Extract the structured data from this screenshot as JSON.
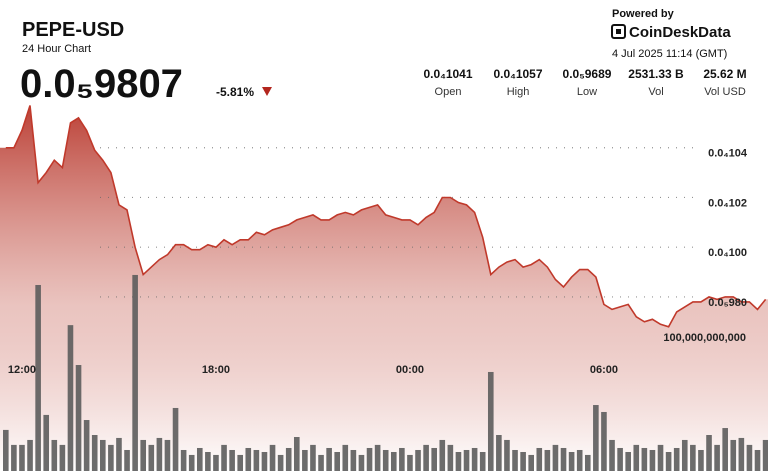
{
  "chart_data": {
    "type": "line",
    "title": "PEPE-USD",
    "subtitle": "24 Hour Chart",
    "price": "0.0₅9807",
    "change": "-5.81%",
    "powered_by": "Powered by",
    "brand": "CoinDeskData",
    "timestamp": "4 Jul 2025 11:14 (GMT)",
    "stats": [
      {
        "value": "0.0₄1041",
        "label": "Open"
      },
      {
        "value": "0.0₄1057",
        "label": "High"
      },
      {
        "value": "0.0₅9689",
        "label": "Low"
      },
      {
        "value": "2531.33 B",
        "label": "Vol"
      },
      {
        "value": "25.62 M",
        "label": "Vol USD"
      }
    ],
    "categories": [
      null,
      null,
      "12:00",
      null,
      null,
      null,
      null,
      null,
      null,
      null,
      null,
      null,
      null,
      null,
      null,
      null,
      null,
      null,
      null,
      null,
      null,
      null,
      null,
      null,
      null,
      null,
      "18:00",
      null,
      null,
      null,
      null,
      null,
      null,
      null,
      null,
      null,
      null,
      null,
      null,
      null,
      null,
      null,
      null,
      null,
      null,
      null,
      null,
      null,
      null,
      null,
      "00:00",
      null,
      null,
      null,
      null,
      null,
      null,
      null,
      null,
      null,
      null,
      null,
      null,
      null,
      null,
      null,
      null,
      null,
      null,
      null,
      null,
      null,
      null,
      null,
      "06:00",
      null,
      null,
      null,
      null,
      null,
      null,
      null,
      null,
      null,
      null,
      null,
      null,
      null,
      null,
      null,
      null,
      null,
      null,
      null,
      null
    ],
    "series": [
      {
        "color": "#c0392b",
        "values": [
          1.042e-05,
          1.042e-05,
          1.049e-05,
          1.059e-05,
          1.028e-05,
          1.032e-05,
          1.037e-05,
          1.034e-05,
          1.052e-05,
          1.054e-05,
          1.049e-05,
          1.041e-05,
          1.037e-05,
          1.032e-05,
          1.019e-05,
          1.017e-05,
          1.002e-05,
          9.91e-06,
          9.94e-06,
          9.97e-06,
          9.99e-06,
          1.003e-05,
          1.003e-05,
          1.001e-05,
          1.001e-05,
          1.003e-05,
          1.002e-05,
          1.005e-05,
          1.003e-05,
          1.005e-05,
          1.005e-05,
          1.008e-05,
          1.007e-05,
          1.009e-05,
          1.01e-05,
          1.011e-05,
          1.013e-05,
          1.014e-05,
          1.015e-05,
          1.013e-05,
          1.013e-05,
          1.015e-05,
          1.016e-05,
          1.015e-05,
          1.017e-05,
          1.018e-05,
          1.019e-05,
          1.015e-05,
          1.014e-05,
          1.013e-05,
          1.013e-05,
          1.011e-05,
          1.014e-05,
          1.016e-05,
          1.022e-05,
          1.022e-05,
          1.02e-05,
          1.019e-05,
          1.016e-05,
          1.006e-05,
          9.91e-06,
          9.94e-06,
          9.96e-06,
          9.97e-06,
          9.94e-06,
          9.95e-06,
          9.97e-06,
          9.94e-06,
          9.89e-06,
          9.86e-06,
          9.9e-06,
          9.93e-06,
          9.93e-06,
          9.9e-06,
          9.79e-06,
          9.77e-06,
          9.78e-06,
          9.79e-06,
          9.74e-06,
          9.72e-06,
          9.73e-06,
          9.71e-06,
          9.7e-06,
          9.76e-06,
          9.78e-06,
          9.8e-06,
          9.8e-06,
          9.82e-06,
          9.81e-06,
          9.82e-06,
          9.82e-06,
          9.8e-06,
          9.8e-06,
          9.77e-06,
          9.81e-06
        ]
      },
      {
        "color": "#5c5c5c",
        "axis": "y2",
        "values": [
          30700000000.0,
          19500000000.0,
          19500000000.0,
          23200000000.0,
          139000000000.0,
          41900000000.0,
          23200000000.0,
          19500000000.0,
          109000000000.0,
          79200000000.0,
          38100000000.0,
          26900000000.0,
          23200000000.0,
          19500000000.0,
          24700000000.0,
          15700000000.0,
          146500000000.0,
          23200000000.0,
          19500000000.0,
          24700000000.0,
          23200000000.0,
          47100000000.0,
          15700000000.0,
          12000000000.0,
          17200000000.0,
          14200000000.0,
          12000000000.0,
          19500000000.0,
          15700000000.0,
          12000000000.0,
          17200000000.0,
          15700000000.0,
          14200000000.0,
          19500000000.0,
          12000000000.0,
          17200000000.0,
          25400000000.0,
          15700000000.0,
          19500000000.0,
          12000000000.0,
          17200000000.0,
          14200000000.0,
          19500000000.0,
          15700000000.0,
          12000000000.0,
          17200000000.0,
          19500000000.0,
          15700000000.0,
          14200000000.0,
          17200000000.0,
          12000000000.0,
          15700000000.0,
          19500000000.0,
          17200000000.0,
          23200000000.0,
          19500000000.0,
          14200000000.0,
          15700000000.0,
          17200000000.0,
          14200000000.0,
          74000000000.0,
          26900000000.0,
          23200000000.0,
          15700000000.0,
          14200000000.0,
          12000000000.0,
          17200000000.0,
          15700000000.0,
          19500000000.0,
          17200000000.0,
          14200000000.0,
          15700000000.0,
          12000000000.0,
          49300000000.0,
          44100000000.0,
          23200000000.0,
          17200000000.0,
          14200000000.0,
          19500000000.0,
          17200000000.0,
          15700000000.0,
          19500000000.0,
          14200000000.0,
          17200000000.0,
          23200000000.0,
          19500000000.0,
          15700000000.0,
          26900000000.0,
          19500000000.0,
          32100000000.0,
          23200000000.0,
          24700000000.0,
          19500000000.0,
          15700000000.0,
          23200000000.0
        ]
      }
    ],
    "ylim": [
      9.12e-06,
      1.06e-05
    ],
    "yticks": [
      {
        "value": 1.04e-05,
        "label": "0.0₄104"
      },
      {
        "value": 1.02e-05,
        "label": "0.0₄102"
      },
      {
        "value": 1e-05,
        "label": "0.0₄100"
      },
      {
        "value": 9.8e-06,
        "label": "0.0₅980"
      }
    ],
    "y2lim": [
      0,
      275000000000.0
    ],
    "y2ticks": [
      {
        "value": 100000000000.0,
        "label": "100,000,000,000"
      }
    ],
    "grid": true
  }
}
